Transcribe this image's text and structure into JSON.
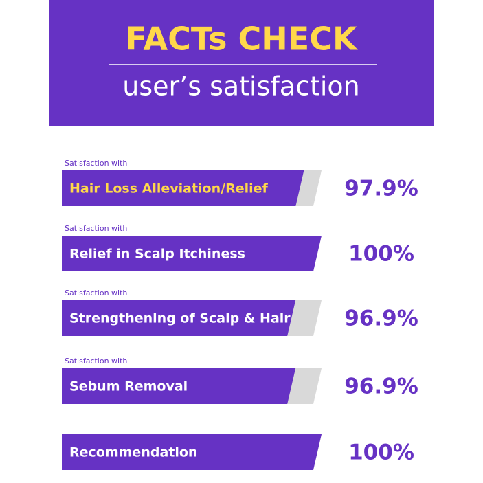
{
  "chart_data": {
    "type": "hbar",
    "title": "FACTs CHECK",
    "subtitle": "user’s satisfaction",
    "prefixes": [
      "Satisfaction with",
      "Satisfaction with",
      "Satisfaction with",
      "Satisfaction with",
      null
    ],
    "categories": [
      "Hair Loss Alleviation/Relief",
      "Relief in Scalp Itchiness",
      "Strengthening of Scalp & Hair",
      "Sebum Removal",
      "Recommendation"
    ],
    "values": [
      97.9,
      100,
      96.9,
      96.9,
      100
    ],
    "value_labels": [
      "97.9%",
      "100%",
      "96.9%",
      "96.9%",
      "100%"
    ],
    "label_colors": [
      "#ffd84a",
      "#ffffff",
      "#ffffff",
      "#ffffff",
      "#ffffff"
    ],
    "color": "#6632c4",
    "track_color": "#d9d9d9",
    "xlim": [
      70,
      100
    ]
  }
}
